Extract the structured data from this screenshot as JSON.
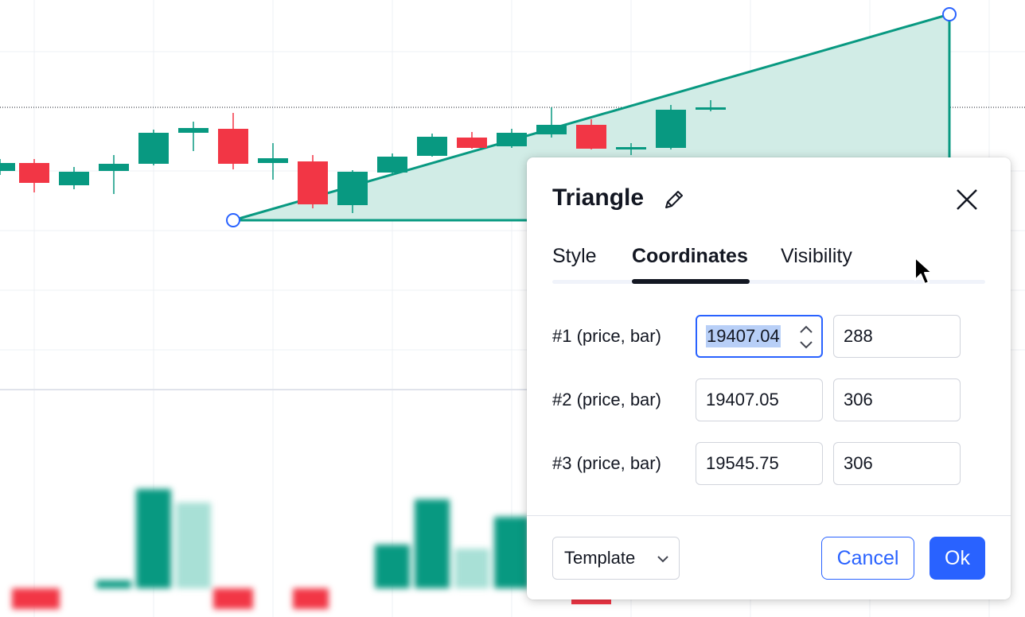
{
  "dialog": {
    "title": "Triangle",
    "tabs": [
      {
        "label": "Style",
        "active": false
      },
      {
        "label": "Coordinates",
        "active": true
      },
      {
        "label": "Visibility",
        "active": false
      }
    ],
    "rows": [
      {
        "label": "#1 (price, bar)",
        "price": "19407.04",
        "bar": "288"
      },
      {
        "label": "#2 (price, bar)",
        "price": "19407.05",
        "bar": "306"
      },
      {
        "label": "#3 (price, bar)",
        "price": "19545.75",
        "bar": "306"
      }
    ],
    "template_label": "Template",
    "cancel_label": "Cancel",
    "ok_label": "Ok"
  },
  "icons": {
    "edit": "pencil-icon",
    "close": "close-icon",
    "template_dropdown": "chevron-down-icon",
    "stepper_up": "chevron-up-icon",
    "stepper_down": "chevron-down-icon"
  },
  "colors": {
    "up_candle": "#089981",
    "down_candle": "#f23645",
    "triangle_line": "#089981",
    "triangle_fill": "#d1ece6",
    "accent": "#2962ff"
  }
}
